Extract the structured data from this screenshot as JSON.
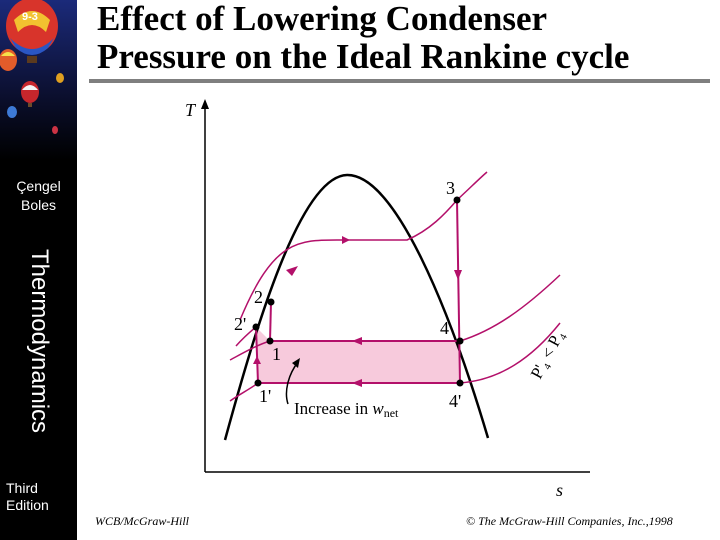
{
  "slide": {
    "number": "9-3"
  },
  "sidebar": {
    "author_line1": "Çengel",
    "author_line2": "Boles",
    "book_title": "Thermodynamics",
    "edition_line1": "Third",
    "edition_line2": "Edition"
  },
  "title": {
    "line1": "Effect of Lowering Condenser",
    "line2": "Pressure on the Ideal Rankine cycle"
  },
  "diagram": {
    "y_axis_label": "T",
    "x_axis_label": "s",
    "points": [
      "1",
      "1'",
      "2",
      "2'",
      "3",
      "4",
      "4'"
    ],
    "pressure_label": "P'₄ < P₄",
    "area_label_text": "Increase in ",
    "area_label_var": "w",
    "area_label_sub": "net",
    "colors": {
      "cycle": "#b3106a",
      "fill": "#f7cadc",
      "dome": "#000000"
    }
  },
  "footer": {
    "left": "WCB/McGraw-Hill",
    "right": "© The McGraw-Hill Companies, Inc.,1998"
  }
}
